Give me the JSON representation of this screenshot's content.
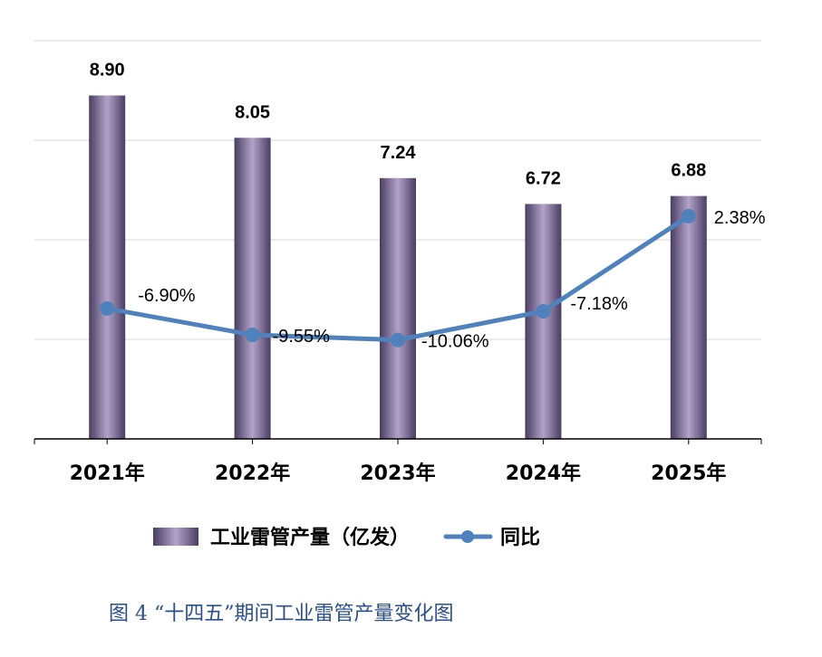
{
  "chart_data": {
    "type": "bar",
    "title": "",
    "caption": "图 4 “十四五”期间工业雷管产量变化图",
    "categories": [
      "2021年",
      "2022年",
      "2023年",
      "2024年",
      "2025年"
    ],
    "series": [
      {
        "name": "工业雷管产量（亿发）",
        "type": "bar",
        "axis": "left",
        "values": [
          8.9,
          8.05,
          7.24,
          6.72,
          6.88
        ],
        "labels": [
          "8.90",
          "8.05",
          "7.24",
          "6.72",
          "6.88"
        ]
      },
      {
        "name": "同比",
        "type": "line",
        "axis": "right",
        "values": [
          -6.9,
          -9.55,
          -10.06,
          -7.18,
          2.38
        ],
        "labels": [
          "-6.90%",
          "-9.55%",
          "-10.06%",
          "-7.18%",
          "2.38%"
        ]
      }
    ],
    "ylim": [
      2,
      10
    ],
    "y2lim": [
      -20,
      20
    ],
    "grid": true,
    "legend": "bottom",
    "colors": {
      "bar_dark": "#4a3d62",
      "bar_light": "#b3a3c9",
      "line": "#4f81bd",
      "grid": "#d9d9d9",
      "caption": "#2a4f8a"
    }
  }
}
